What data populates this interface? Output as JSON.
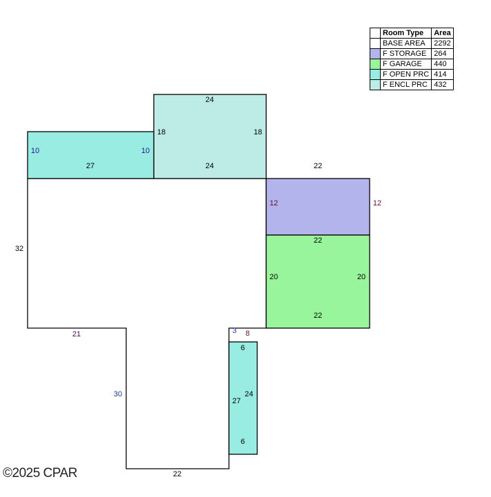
{
  "legend": {
    "header": {
      "room_type": "Room Type",
      "area": "Area"
    },
    "rows": [
      {
        "name": "BASE AREA",
        "area": "2292",
        "color": "#ffffff"
      },
      {
        "name": "F STORAGE",
        "area": "264",
        "color": "#b4b4ec"
      },
      {
        "name": "F GARAGE",
        "area": "440",
        "color": "#99f59b"
      },
      {
        "name": "F OPEN PRC",
        "area": "414",
        "color": "#98ece1"
      },
      {
        "name": "F ENCL PRC",
        "area": "432",
        "color": "#bdebe5"
      }
    ]
  },
  "dimensions": {
    "encl_top": "24",
    "encl_left": "18",
    "encl_right": "18",
    "encl_bottom": "24",
    "open_left": "10",
    "open_right": "10",
    "open_bottom": "27",
    "storage_top": "22",
    "storage_left": "12",
    "storage_right": "12",
    "storage_bottom": "22",
    "garage_left": "20",
    "garage_right": "20",
    "garage_bottom": "22",
    "base_left": "32",
    "base_step": "21",
    "base_lower_left": "30",
    "base_bottom": "22",
    "base_notch": "3",
    "porch2_top_gap": "8",
    "porch2_top": "6",
    "porch2_left": "27",
    "porch2_right": "24",
    "porch2_bottom": "6"
  },
  "copyright": "©2025 CPAR"
}
